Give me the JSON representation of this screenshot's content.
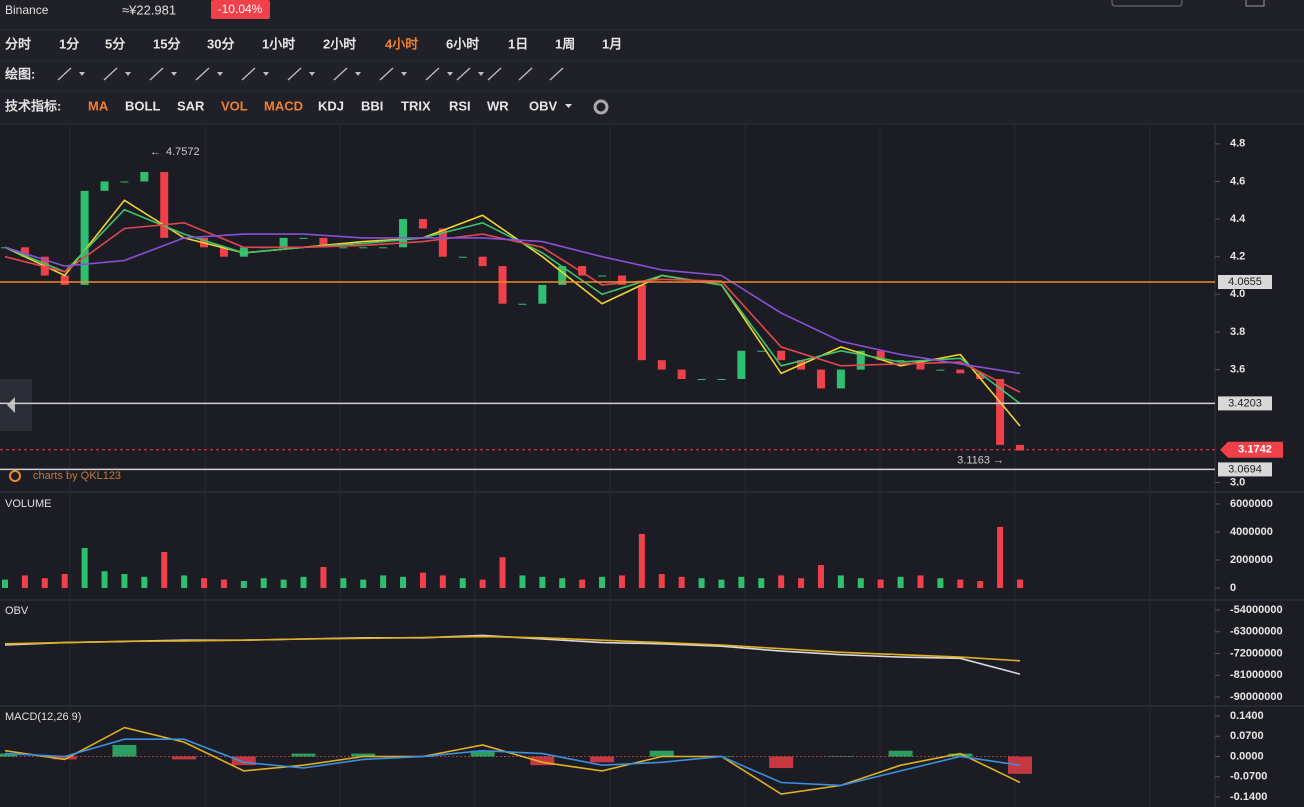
{
  "header": {
    "exchange": "Binance",
    "price": "≈¥22.981",
    "change": "-10.04%"
  },
  "toolbar": {
    "timeframes": [
      "分时",
      "1分",
      "5分",
      "15分",
      "30分",
      "1小时",
      "2小时",
      "4小时",
      "6小时",
      "1日",
      "1周",
      "1月"
    ],
    "selected_timeframe": 7,
    "drawing_label": "绘图:",
    "indicator_label": "技术指标:",
    "indicators": [
      {
        "name": "MA",
        "active": true
      },
      {
        "name": "BOLL",
        "active": false
      },
      {
        "name": "SAR",
        "active": false
      },
      {
        "name": "VOL",
        "active": true
      },
      {
        "name": "MACD",
        "active": true
      },
      {
        "name": "KDJ",
        "active": false
      },
      {
        "name": "BBI",
        "active": false
      },
      {
        "name": "TRIX",
        "active": false
      },
      {
        "name": "RSI",
        "active": false
      },
      {
        "name": "WR",
        "active": false
      },
      {
        "name": "OBV",
        "active": false
      }
    ]
  },
  "chart_data": [
    {
      "type": "candlestick",
      "watermark": "charts by QKL123",
      "close": [
        4.25,
        4.2,
        4.1,
        4.05,
        4.55,
        4.6,
        4.6,
        4.65,
        4.3,
        4.3,
        4.25,
        4.2,
        4.25,
        4.25,
        4.3,
        4.3,
        4.25,
        4.25,
        4.25,
        4.25,
        4.4,
        4.35,
        4.2,
        4.2,
        4.15,
        3.95,
        3.95,
        4.05,
        4.15,
        4.1,
        4.1,
        4.05,
        3.65,
        3.6,
        3.55,
        3.55,
        3.55,
        3.7,
        3.7,
        3.65,
        3.6,
        3.5,
        3.6,
        3.7,
        3.65,
        3.65,
        3.6,
        3.6,
        3.58,
        3.55,
        3.2,
        3.17
      ],
      "up_color": "#2fbf71",
      "down_color": "#f0404a",
      "series": [
        {
          "color": "#f2d22e",
          "values": [
            4.25,
            4.1,
            4.5,
            4.3,
            4.22,
            4.25,
            4.28,
            4.3,
            4.42,
            4.2,
            3.95,
            4.1,
            4.05,
            3.58,
            3.72,
            3.62,
            3.68,
            3.3
          ]
        },
        {
          "color": "#3fc36a",
          "values": [
            4.25,
            4.12,
            4.45,
            4.32,
            4.22,
            4.25,
            4.27,
            4.3,
            4.38,
            4.22,
            4.0,
            4.1,
            4.05,
            3.62,
            3.7,
            3.64,
            3.66,
            3.42
          ]
        },
        {
          "color": "#e0464e",
          "values": [
            4.2,
            4.12,
            4.35,
            4.38,
            4.25,
            4.25,
            4.26,
            4.28,
            4.32,
            4.25,
            4.05,
            4.08,
            4.07,
            3.72,
            3.62,
            3.63,
            3.64,
            3.48
          ]
        },
        {
          "color": "#8a4fd8",
          "values": [
            4.25,
            4.15,
            4.18,
            4.3,
            4.32,
            4.32,
            4.3,
            4.3,
            4.3,
            4.28,
            4.2,
            4.13,
            4.1,
            3.9,
            3.75,
            3.68,
            3.63,
            3.58
          ]
        }
      ],
      "levels": [
        {
          "value": 4.0655,
          "color": "#f08a24"
        },
        {
          "value": 3.4203,
          "color": "#cfcfcf"
        },
        {
          "value": 3.0694,
          "color": "#cfcfcf"
        }
      ],
      "last_price": 3.1742,
      "high": 4.7572,
      "low": 3.1163,
      "ylim": [
        2.96,
        4.9
      ],
      "yticks": [
        4.8,
        4.6,
        4.4,
        4.2,
        {
          "value": 4,
          "label": "4.0"
        },
        3.8,
        3.6,
        {
          "value": 3,
          "label": "3.0"
        }
      ]
    },
    {
      "type": "bar",
      "title": "VOLUME",
      "values": [
        600000,
        900000,
        700000,
        1000000,
        2860000,
        1200000,
        1000000,
        800000,
        2570000,
        900000,
        700000,
        600000,
        500000,
        700000,
        600000,
        800000,
        1500000,
        700000,
        600000,
        900000,
        800000,
        1100000,
        900000,
        700000,
        600000,
        2200000,
        900000,
        800000,
        700000,
        600000,
        800000,
        900000,
        3860000,
        1000000,
        800000,
        700000,
        600000,
        800000,
        700000,
        900000,
        700000,
        1640000,
        900000,
        700000,
        600000,
        800000,
        900000,
        700000,
        600000,
        500000,
        4360000,
        600000
      ],
      "ylim": [
        -640000,
        6640000
      ],
      "yticks": [
        6000000,
        4000000,
        2000000,
        0
      ]
    },
    {
      "type": "line",
      "title": "OBV",
      "series": [
        {
          "color": "#d8d8d8",
          "values": [
            -68500000,
            -67500000,
            -67000000,
            -66500000,
            -66500000,
            -66000000,
            -65500000,
            -65500000,
            -64500000,
            -66000000,
            -67500000,
            -68000000,
            -69000000,
            -71000000,
            -72500000,
            -73500000,
            -74000000,
            -80500000
          ]
        },
        {
          "color": "#e0b020",
          "values": [
            -68000000,
            -67500000,
            -67000000,
            -66800000,
            -66500000,
            -66000000,
            -65700000,
            -65400000,
            -65000000,
            -65500000,
            -66500000,
            -67500000,
            -68500000,
            -70000000,
            -71500000,
            -72500000,
            -73500000,
            -75000000
          ]
        }
      ],
      "ylim": [
        -93300000,
        -50700000
      ],
      "yticks": [
        -54000000,
        -63000000,
        -72000000,
        -81000000,
        -90000000
      ]
    },
    {
      "type": "macd",
      "title": "MACD(12,26,9)",
      "series": [
        {
          "color": "#e0b020",
          "values": [
            0.02,
            -0.01,
            0.1,
            0.05,
            -0.05,
            -0.03,
            0.0,
            0.0,
            0.04,
            -0.02,
            -0.05,
            0.0,
            0.0,
            -0.13,
            -0.1,
            -0.03,
            0.01,
            -0.09
          ]
        },
        {
          "color": "#3b8fe0",
          "values": [
            0.01,
            0.0,
            0.06,
            0.06,
            -0.02,
            -0.04,
            -0.01,
            0.0,
            0.02,
            0.01,
            -0.03,
            -0.02,
            0.0,
            -0.09,
            -0.1,
            -0.05,
            0.0,
            -0.03
          ]
        }
      ],
      "histogram": [
        0.01,
        -0.01,
        0.04,
        -0.01,
        -0.03,
        0.01,
        0.01,
        0.0,
        0.02,
        -0.03,
        -0.02,
        0.02,
        0.0,
        -0.04,
        0.0,
        0.02,
        0.01,
        -0.06
      ],
      "ylim": [
        -0.168,
        0.168
      ],
      "yticks": [
        {
          "value": 0.14,
          "label": "0.1400"
        },
        {
          "value": 0.07,
          "label": "0.0700"
        },
        {
          "value": 0,
          "label": "0.0000"
        },
        {
          "value": -0.07,
          "label": "-0.0700"
        },
        {
          "value": -0.14,
          "label": "-0.1400"
        }
      ]
    }
  ]
}
